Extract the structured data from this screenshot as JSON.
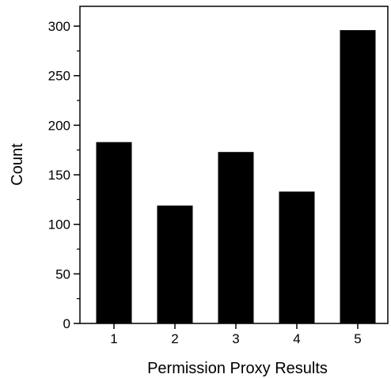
{
  "chart_data": {
    "type": "bar",
    "categories": [
      "1",
      "2",
      "3",
      "4",
      "5"
    ],
    "values": [
      183,
      119,
      173,
      133,
      296
    ],
    "title": "",
    "xlabel": "Permission Proxy Results",
    "ylabel": "Count",
    "ylim": [
      0,
      320
    ],
    "yticks": [
      0,
      50,
      100,
      150,
      200,
      250,
      300
    ],
    "yticks_minor": [
      25,
      75,
      125,
      175,
      225,
      275
    ],
    "grid": false,
    "legend": "none",
    "bar_color": "#000000",
    "axis_color": "#000000"
  }
}
